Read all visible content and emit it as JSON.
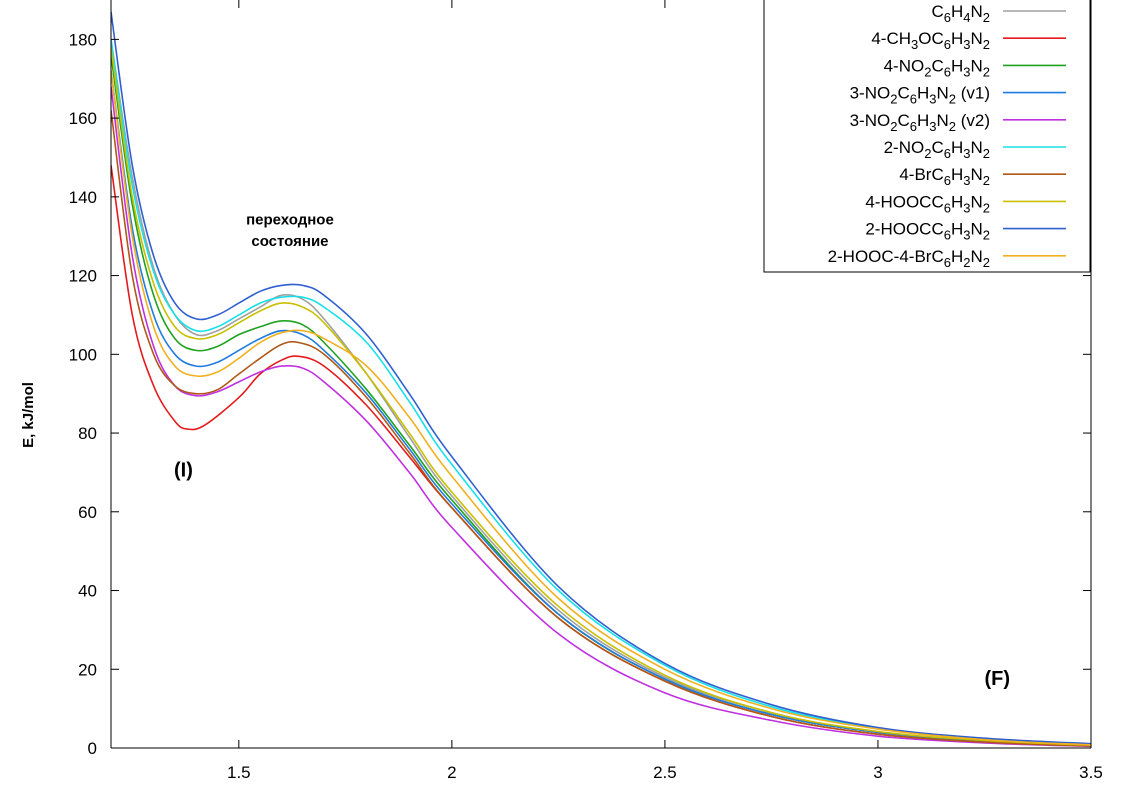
{
  "chart_data": {
    "type": "line",
    "title": "",
    "xlabel": "",
    "ylabel": "E, kJ/mol",
    "xlim": [
      1.2,
      3.5
    ],
    "ylim": [
      0,
      190
    ],
    "x_ticks": [
      1.5,
      2,
      2.5,
      3,
      3.5
    ],
    "y_ticks": [
      0,
      20,
      40,
      60,
      80,
      100,
      120,
      140,
      160,
      180
    ],
    "x_tick_labels": [
      "1.5",
      "2",
      "2.5",
      "3",
      "3.5"
    ],
    "y_tick_labels": [
      "0",
      "20",
      "40",
      "60",
      "80",
      "100",
      "120",
      "140",
      "160",
      "180"
    ],
    "grid": false,
    "legend_position": "top-right",
    "annotations": [
      {
        "text": "переходное",
        "x": 1.62,
        "y": 133
      },
      {
        "text": "состояние",
        "x": 1.62,
        "y": 127.5
      },
      {
        "text": "(I)",
        "x": 1.37,
        "y": 69
      },
      {
        "text": "(F)",
        "x": 3.28,
        "y": 16
      }
    ],
    "series": [
      {
        "name": "C6H4N2",
        "color": "#a0a0a0",
        "legend_parts": [
          [
            "C",
            ""
          ],
          [
            "6",
            "sub"
          ],
          [
            "H",
            ""
          ],
          [
            "4",
            "sub"
          ],
          [
            "N",
            ""
          ],
          [
            "2",
            "sub"
          ]
        ],
        "points": [
          [
            1.2,
            180
          ],
          [
            1.25,
            145
          ],
          [
            1.3,
            122
          ],
          [
            1.35,
            110
          ],
          [
            1.4,
            105
          ],
          [
            1.45,
            106
          ],
          [
            1.5,
            109
          ],
          [
            1.55,
            112
          ],
          [
            1.6,
            115
          ],
          [
            1.65,
            114
          ],
          [
            1.7,
            109
          ],
          [
            1.8,
            95
          ],
          [
            1.9,
            79
          ],
          [
            2.0,
            64
          ],
          [
            2.25,
            35
          ],
          [
            2.5,
            18
          ],
          [
            2.75,
            9
          ],
          [
            3.0,
            4
          ],
          [
            3.25,
            2
          ],
          [
            3.5,
            1
          ]
        ]
      },
      {
        "name": "4-CH3OC6H3N2",
        "color": "#e41a1c",
        "legend_parts": [
          [
            "4-CH",
            ""
          ],
          [
            "3",
            "sub"
          ],
          [
            "OC",
            ""
          ],
          [
            "6",
            "sub"
          ],
          [
            "H",
            ""
          ],
          [
            "3",
            "sub"
          ],
          [
            "N",
            ""
          ],
          [
            "2",
            "sub"
          ]
        ],
        "points": [
          [
            1.2,
            148
          ],
          [
            1.25,
            110
          ],
          [
            1.3,
            92
          ],
          [
            1.35,
            83
          ],
          [
            1.38,
            81
          ],
          [
            1.42,
            82
          ],
          [
            1.5,
            89
          ],
          [
            1.55,
            95
          ],
          [
            1.6,
            98.5
          ],
          [
            1.64,
            99.5
          ],
          [
            1.7,
            97
          ],
          [
            1.8,
            87
          ],
          [
            1.9,
            74
          ],
          [
            2.0,
            61
          ],
          [
            2.25,
            33
          ],
          [
            2.5,
            17
          ],
          [
            2.75,
            8
          ],
          [
            3.0,
            3.5
          ],
          [
            3.25,
            1.5
          ],
          [
            3.5,
            0.5
          ]
        ]
      },
      {
        "name": "4-NO2C6H3N2",
        "color": "#1fa31f",
        "legend_parts": [
          [
            "4-NO",
            ""
          ],
          [
            "2",
            "sub"
          ],
          [
            "C",
            ""
          ],
          [
            "6",
            "sub"
          ],
          [
            "H",
            ""
          ],
          [
            "3",
            "sub"
          ],
          [
            "N",
            ""
          ],
          [
            "2",
            "sub"
          ]
        ],
        "points": [
          [
            1.2,
            176
          ],
          [
            1.25,
            138
          ],
          [
            1.3,
            115
          ],
          [
            1.35,
            104
          ],
          [
            1.4,
            101
          ],
          [
            1.45,
            102
          ],
          [
            1.5,
            105
          ],
          [
            1.55,
            107
          ],
          [
            1.6,
            108.5
          ],
          [
            1.65,
            107.5
          ],
          [
            1.7,
            103
          ],
          [
            1.8,
            91
          ],
          [
            1.9,
            77
          ],
          [
            2.0,
            63
          ],
          [
            2.25,
            34
          ],
          [
            2.5,
            17.5
          ],
          [
            2.75,
            8.5
          ],
          [
            3.0,
            4
          ],
          [
            3.25,
            1.8
          ],
          [
            3.5,
            0.6
          ]
        ]
      },
      {
        "name": "3-NO2C6H3N2 (v1)",
        "color": "#1f7be0",
        "legend_parts": [
          [
            "3-NO",
            ""
          ],
          [
            "2",
            "sub"
          ],
          [
            "C",
            ""
          ],
          [
            "6",
            "sub"
          ],
          [
            "H",
            ""
          ],
          [
            "3",
            "sub"
          ],
          [
            "N",
            ""
          ],
          [
            "2",
            "sub"
          ],
          [
            " (v1)",
            ""
          ]
        ],
        "points": [
          [
            1.2,
            172
          ],
          [
            1.25,
            132
          ],
          [
            1.3,
            110
          ],
          [
            1.35,
            100
          ],
          [
            1.4,
            97
          ],
          [
            1.45,
            98
          ],
          [
            1.5,
            101
          ],
          [
            1.55,
            104
          ],
          [
            1.6,
            106
          ],
          [
            1.65,
            105
          ],
          [
            1.7,
            101
          ],
          [
            1.8,
            90
          ],
          [
            1.9,
            76
          ],
          [
            2.0,
            62
          ],
          [
            2.25,
            34
          ],
          [
            2.5,
            17.5
          ],
          [
            2.75,
            8.5
          ],
          [
            3.0,
            4
          ],
          [
            3.25,
            1.8
          ],
          [
            3.5,
            0.6
          ]
        ]
      },
      {
        "name": "3-NO2C6H3N2 (v2)",
        "color": "#c030e0",
        "legend_parts": [
          [
            "3-NO",
            ""
          ],
          [
            "2",
            "sub"
          ],
          [
            "C",
            ""
          ],
          [
            "6",
            "sub"
          ],
          [
            "H",
            ""
          ],
          [
            "3",
            "sub"
          ],
          [
            "N",
            ""
          ],
          [
            "2",
            "sub"
          ],
          [
            " (v2)",
            ""
          ]
        ],
        "points": [
          [
            1.2,
            168
          ],
          [
            1.25,
            125
          ],
          [
            1.3,
            102
          ],
          [
            1.35,
            92
          ],
          [
            1.4,
            89.5
          ],
          [
            1.45,
            90.5
          ],
          [
            1.5,
            93
          ],
          [
            1.55,
            95.5
          ],
          [
            1.6,
            97
          ],
          [
            1.65,
            96.5
          ],
          [
            1.7,
            93
          ],
          [
            1.8,
            83
          ],
          [
            1.9,
            70
          ],
          [
            2.0,
            56
          ],
          [
            2.25,
            29
          ],
          [
            2.5,
            14
          ],
          [
            2.75,
            7
          ],
          [
            3.0,
            3
          ],
          [
            3.25,
            1.3
          ],
          [
            3.5,
            0.4
          ]
        ]
      },
      {
        "name": "2-NO2C6H3N2",
        "color": "#18e0e8",
        "legend_parts": [
          [
            "2-NO",
            ""
          ],
          [
            "2",
            "sub"
          ],
          [
            "C",
            ""
          ],
          [
            "6",
            "sub"
          ],
          [
            "H",
            ""
          ],
          [
            "3",
            "sub"
          ],
          [
            "N",
            ""
          ],
          [
            "2",
            "sub"
          ]
        ],
        "points": [
          [
            1.2,
            180
          ],
          [
            1.25,
            143
          ],
          [
            1.3,
            121
          ],
          [
            1.35,
            110
          ],
          [
            1.4,
            106
          ],
          [
            1.45,
            107
          ],
          [
            1.5,
            110
          ],
          [
            1.55,
            113
          ],
          [
            1.6,
            114.5
          ],
          [
            1.65,
            114.5
          ],
          [
            1.7,
            112
          ],
          [
            1.8,
            103
          ],
          [
            1.9,
            88
          ],
          [
            2.0,
            72
          ],
          [
            2.25,
            40
          ],
          [
            2.5,
            21
          ],
          [
            2.75,
            10.5
          ],
          [
            3.0,
            5
          ],
          [
            3.25,
            2.3
          ],
          [
            3.5,
            1
          ]
        ]
      },
      {
        "name": "4-BrC6H3N2",
        "color": "#b05818",
        "legend_parts": [
          [
            "4-BrC",
            ""
          ],
          [
            "6",
            "sub"
          ],
          [
            "H",
            ""
          ],
          [
            "3",
            "sub"
          ],
          [
            "N",
            ""
          ],
          [
            "2",
            "sub"
          ]
        ],
        "points": [
          [
            1.2,
            162
          ],
          [
            1.25,
            120
          ],
          [
            1.3,
            100
          ],
          [
            1.35,
            92
          ],
          [
            1.4,
            90
          ],
          [
            1.45,
            91
          ],
          [
            1.5,
            95
          ],
          [
            1.55,
            99
          ],
          [
            1.6,
            102.5
          ],
          [
            1.64,
            103
          ],
          [
            1.7,
            100
          ],
          [
            1.8,
            89
          ],
          [
            1.9,
            75
          ],
          [
            2.0,
            61
          ],
          [
            2.25,
            33
          ],
          [
            2.5,
            17
          ],
          [
            2.75,
            8
          ],
          [
            3.0,
            3.5
          ],
          [
            3.25,
            1.5
          ],
          [
            3.5,
            0.5
          ]
        ]
      },
      {
        "name": "4-HOOCC6H3N2",
        "color": "#c8c000",
        "legend_parts": [
          [
            "4-HOOCC",
            ""
          ],
          [
            "6",
            "sub"
          ],
          [
            "H",
            ""
          ],
          [
            "3",
            "sub"
          ],
          [
            "N",
            ""
          ],
          [
            "2",
            "sub"
          ]
        ],
        "points": [
          [
            1.2,
            178
          ],
          [
            1.25,
            140
          ],
          [
            1.3,
            118
          ],
          [
            1.35,
            107
          ],
          [
            1.4,
            104
          ],
          [
            1.45,
            105
          ],
          [
            1.5,
            108
          ],
          [
            1.55,
            111
          ],
          [
            1.6,
            113
          ],
          [
            1.65,
            112
          ],
          [
            1.7,
            108
          ],
          [
            1.8,
            95
          ],
          [
            1.9,
            80
          ],
          [
            2.0,
            65
          ],
          [
            2.25,
            36
          ],
          [
            2.5,
            18.5
          ],
          [
            2.75,
            9
          ],
          [
            3.0,
            4.2
          ],
          [
            3.25,
            1.9
          ],
          [
            3.5,
            0.7
          ]
        ]
      },
      {
        "name": "2-HOOCC6H3N2",
        "color": "#3060d0",
        "legend_parts": [
          [
            "2-HOOCC",
            ""
          ],
          [
            "6",
            "sub"
          ],
          [
            "H",
            ""
          ],
          [
            "3",
            "sub"
          ],
          [
            "N",
            ""
          ],
          [
            "2",
            "sub"
          ]
        ],
        "points": [
          [
            1.2,
            187
          ],
          [
            1.25,
            148
          ],
          [
            1.3,
            125
          ],
          [
            1.35,
            113
          ],
          [
            1.4,
            109
          ],
          [
            1.45,
            110
          ],
          [
            1.5,
            113
          ],
          [
            1.55,
            116
          ],
          [
            1.6,
            117.5
          ],
          [
            1.65,
            117.5
          ],
          [
            1.7,
            115
          ],
          [
            1.8,
            105
          ],
          [
            1.9,
            90
          ],
          [
            2.0,
            74
          ],
          [
            2.25,
            41
          ],
          [
            2.5,
            21.5
          ],
          [
            2.75,
            11
          ],
          [
            3.0,
            5.2
          ],
          [
            3.25,
            2.5
          ],
          [
            3.5,
            1.1
          ]
        ]
      },
      {
        "name": "2-HOOC-4-BrC6H2N2",
        "color": "#f0b020",
        "legend_parts": [
          [
            "2-HOOC-4-BrC",
            ""
          ],
          [
            "6",
            "sub"
          ],
          [
            "H",
            ""
          ],
          [
            "2",
            "sub"
          ],
          [
            "N",
            ""
          ],
          [
            "2",
            "sub"
          ]
        ],
        "points": [
          [
            1.2,
            172
          ],
          [
            1.25,
            130
          ],
          [
            1.3,
            107
          ],
          [
            1.35,
            97
          ],
          [
            1.4,
            94.5
          ],
          [
            1.45,
            95.5
          ],
          [
            1.5,
            99
          ],
          [
            1.55,
            103
          ],
          [
            1.6,
            105.5
          ],
          [
            1.65,
            106
          ],
          [
            1.7,
            104
          ],
          [
            1.8,
            97
          ],
          [
            1.9,
            84
          ],
          [
            2.0,
            69
          ],
          [
            2.25,
            38
          ],
          [
            2.5,
            20
          ],
          [
            2.75,
            10
          ],
          [
            3.0,
            4.8
          ],
          [
            3.25,
            2.1
          ],
          [
            3.5,
            0.8
          ]
        ]
      }
    ]
  }
}
